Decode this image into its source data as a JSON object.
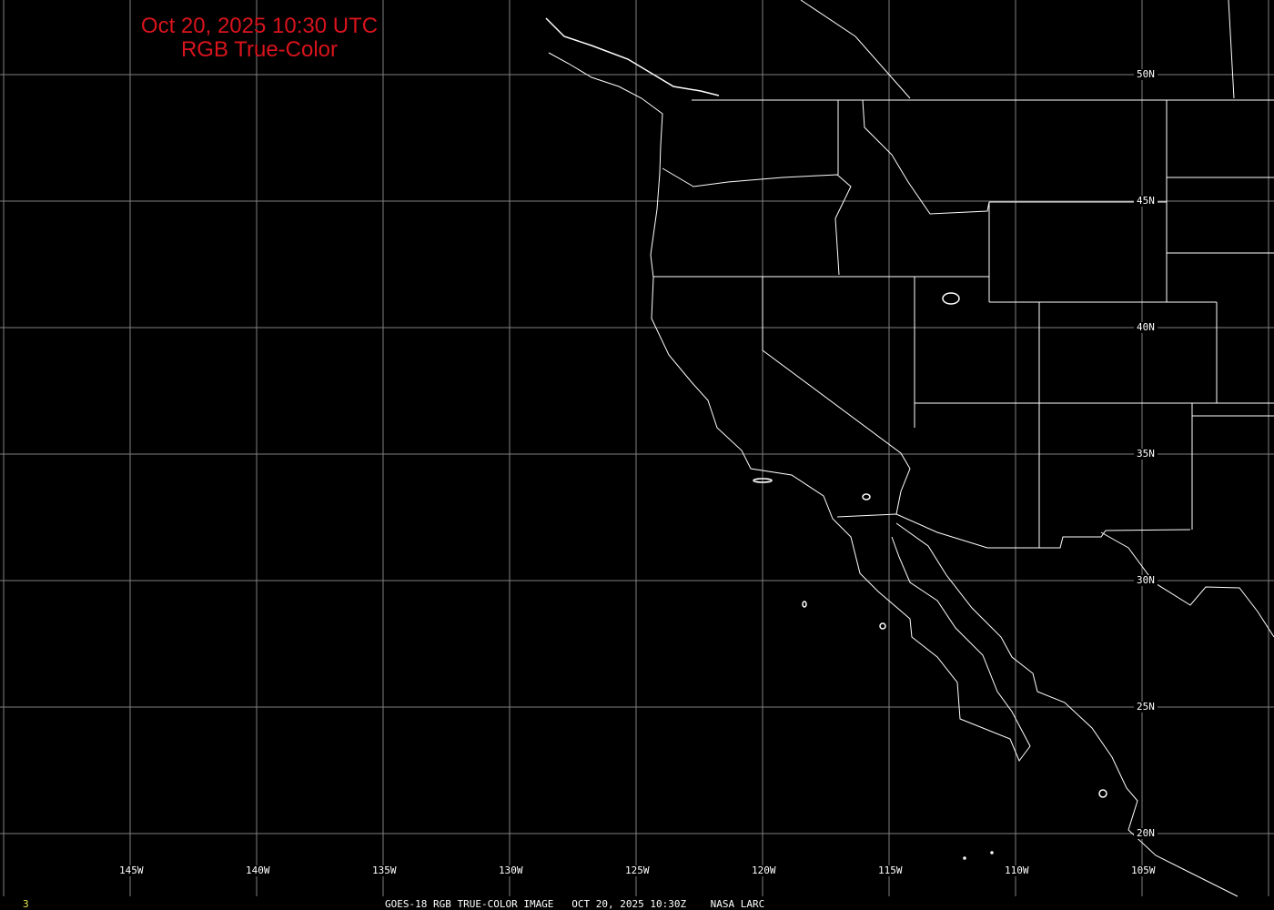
{
  "title": {
    "line1": "Oct 20, 2025 10:30 UTC",
    "line2": "RGB True-Color",
    "color": "#d8141c"
  },
  "map": {
    "projection": "cylindrical equidistant",
    "lon_range": [
      "150W",
      "100W"
    ],
    "lat_range": [
      "17N",
      "52N"
    ],
    "grid_color": "#808080",
    "boundary_color": "#ffffff",
    "lon_labels": [
      "145W",
      "140W",
      "135W",
      "130W",
      "125W",
      "120W",
      "115W",
      "110W",
      "105W"
    ],
    "lat_labels": [
      "50N",
      "45N",
      "40N",
      "35N",
      "30N",
      "25N",
      "20N"
    ]
  },
  "footer": {
    "frame_number": "3",
    "caption": "GOES-18 RGB TRUE-COLOR IMAGE   OCT 20, 2025 10:30Z    NASA LARC"
  }
}
